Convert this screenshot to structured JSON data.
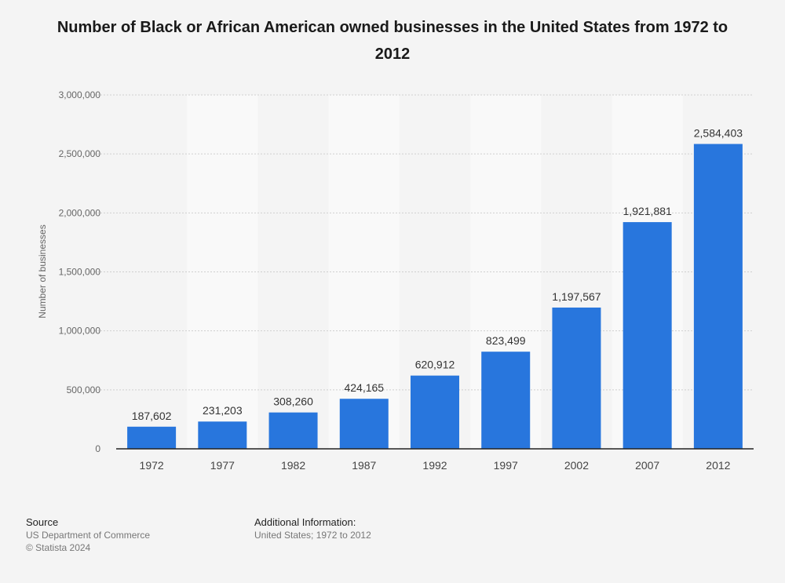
{
  "chart_data": {
    "type": "bar",
    "title": "Number of Black or African American owned businesses in the United States from 1972 to 2012",
    "xlabel": "",
    "ylabel": "Number of businesses",
    "ylim": [
      0,
      3000000
    ],
    "yticks": [
      0,
      500000,
      1000000,
      1500000,
      2000000,
      2500000,
      3000000
    ],
    "ytick_labels": [
      "0",
      "500,000",
      "1,000,000",
      "1,500,000",
      "2,000,000",
      "2,500,000",
      "3,000,000"
    ],
    "categories": [
      "1972",
      "1977",
      "1982",
      "1987",
      "1992",
      "1997",
      "2002",
      "2007",
      "2012"
    ],
    "values": [
      187602,
      231203,
      308260,
      424165,
      620912,
      823499,
      1197567,
      1921881,
      2584403
    ],
    "value_labels": [
      "187,602",
      "231,203",
      "308,260",
      "424,165",
      "620,912",
      "823,499",
      "1,197,567",
      "1,921,881",
      "2,584,403"
    ],
    "bar_color": "#2876dd",
    "grid": true
  },
  "footer": {
    "source_heading": "Source",
    "source_line1": "US Department of Commerce",
    "source_line2": "© Statista 2024",
    "info_heading": "Additional Information:",
    "info_text": "United States; 1972 to 2012"
  }
}
